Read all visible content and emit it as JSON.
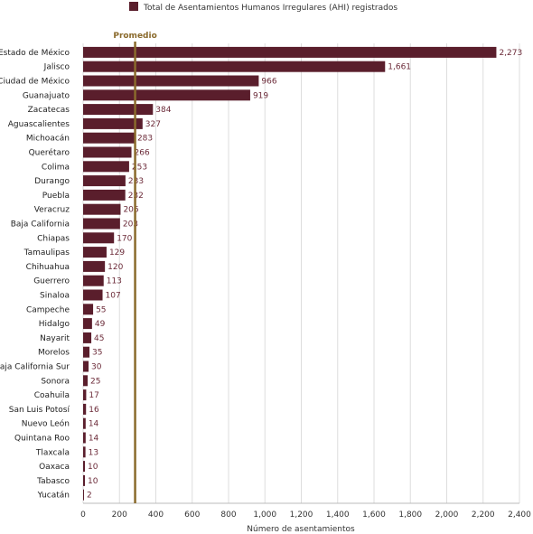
{
  "chart_data": {
    "type": "bar",
    "orientation": "horizontal",
    "title": "",
    "legend": [
      {
        "name": "Total de Asentamientos Humanos Irregulares (AHI) registrados",
        "color": "#5a1e2c"
      }
    ],
    "legend_position": "top",
    "xlabel": "Número de asentamientos",
    "ylabel": "",
    "xlim": [
      0,
      2400
    ],
    "x_ticks": [
      "0",
      "200",
      "400",
      "600",
      "800",
      "1,000",
      "1,200",
      "1,400",
      "1,600",
      "1,800",
      "2,000",
      "2,200",
      "2,400"
    ],
    "x_tick_values": [
      0,
      200,
      400,
      600,
      800,
      1000,
      1200,
      1400,
      1600,
      1800,
      2000,
      2200,
      2400
    ],
    "grid": true,
    "reference_line": {
      "label": "Promedio",
      "value": 286,
      "color": "#8a6a2c"
    },
    "bar_color": "#5a1e2c",
    "categories": [
      "Estado de México",
      "Jalisco",
      "Ciudad de México",
      "Guanajuato",
      "Zacatecas",
      "Aguascalientes",
      "Michoacán",
      "Querétaro",
      "Colima",
      "Durango",
      "Puebla",
      "Veracruz",
      "Baja California",
      "Chiapas",
      "Tamaulipas",
      "Chihuahua",
      "Guerrero",
      "Sinaloa",
      "Campeche",
      "Hidalgo",
      "Nayarit",
      "Morelos",
      "Baja California Sur",
      "Sonora",
      "Coahuila",
      "San Luis Potosí",
      "Nuevo León",
      "Quintana Roo",
      "Tlaxcala",
      "Oaxaca",
      "Tabasco",
      "Yucatán"
    ],
    "values": [
      2273,
      1661,
      966,
      919,
      384,
      327,
      283,
      266,
      253,
      233,
      232,
      206,
      203,
      170,
      129,
      120,
      113,
      107,
      55,
      49,
      45,
      35,
      30,
      25,
      17,
      16,
      14,
      14,
      13,
      10,
      10,
      2
    ],
    "value_labels": [
      "2,273",
      "1,661",
      "966",
      "919",
      "384",
      "327",
      "283",
      "266",
      "253",
      "233",
      "232",
      "206",
      "203",
      "170",
      "129",
      "120",
      "113",
      "107",
      "55",
      "49",
      "45",
      "35",
      "30",
      "25",
      "17",
      "16",
      "14",
      "14",
      "13",
      "10",
      "10",
      "2"
    ]
  }
}
